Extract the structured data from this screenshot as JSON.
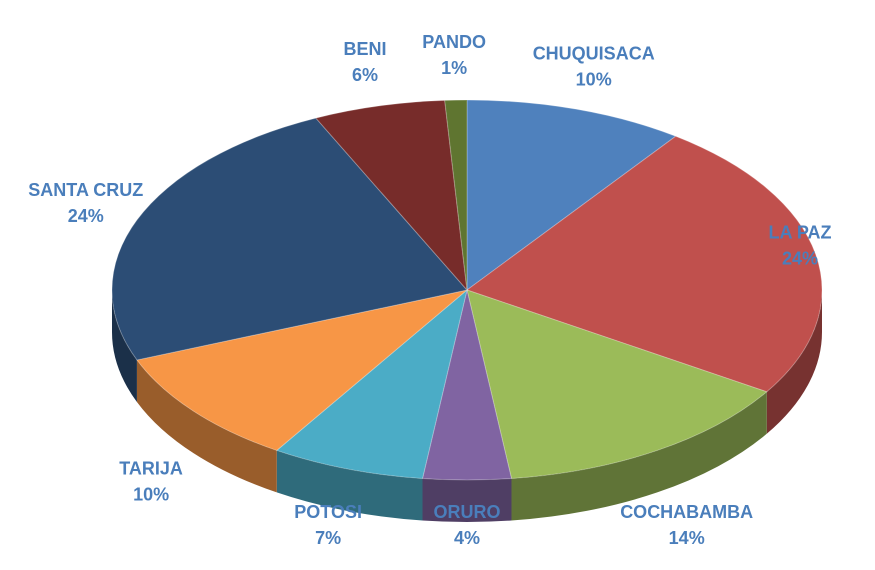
{
  "chart_data": {
    "type": "pie",
    "categories": [
      "CHUQUISACA",
      "LA PAZ",
      "COCHABAMBA",
      "ORURO",
      "POTOSI",
      "TARIJA",
      "SANTA CRUZ",
      "BENI",
      "PANDO"
    ],
    "values": [
      10,
      24,
      14,
      4,
      7,
      10,
      24,
      6,
      1
    ],
    "value_labels": [
      "10%",
      "24%",
      "14%",
      "4%",
      "7%",
      "10%",
      "24%",
      "6%",
      "1%"
    ],
    "colors": [
      "#4f81bd",
      "#c0504d",
      "#9bbb59",
      "#8064a2",
      "#4bacc6",
      "#f79646",
      "#2c4d75",
      "#772c2a",
      "#5f7530"
    ]
  }
}
